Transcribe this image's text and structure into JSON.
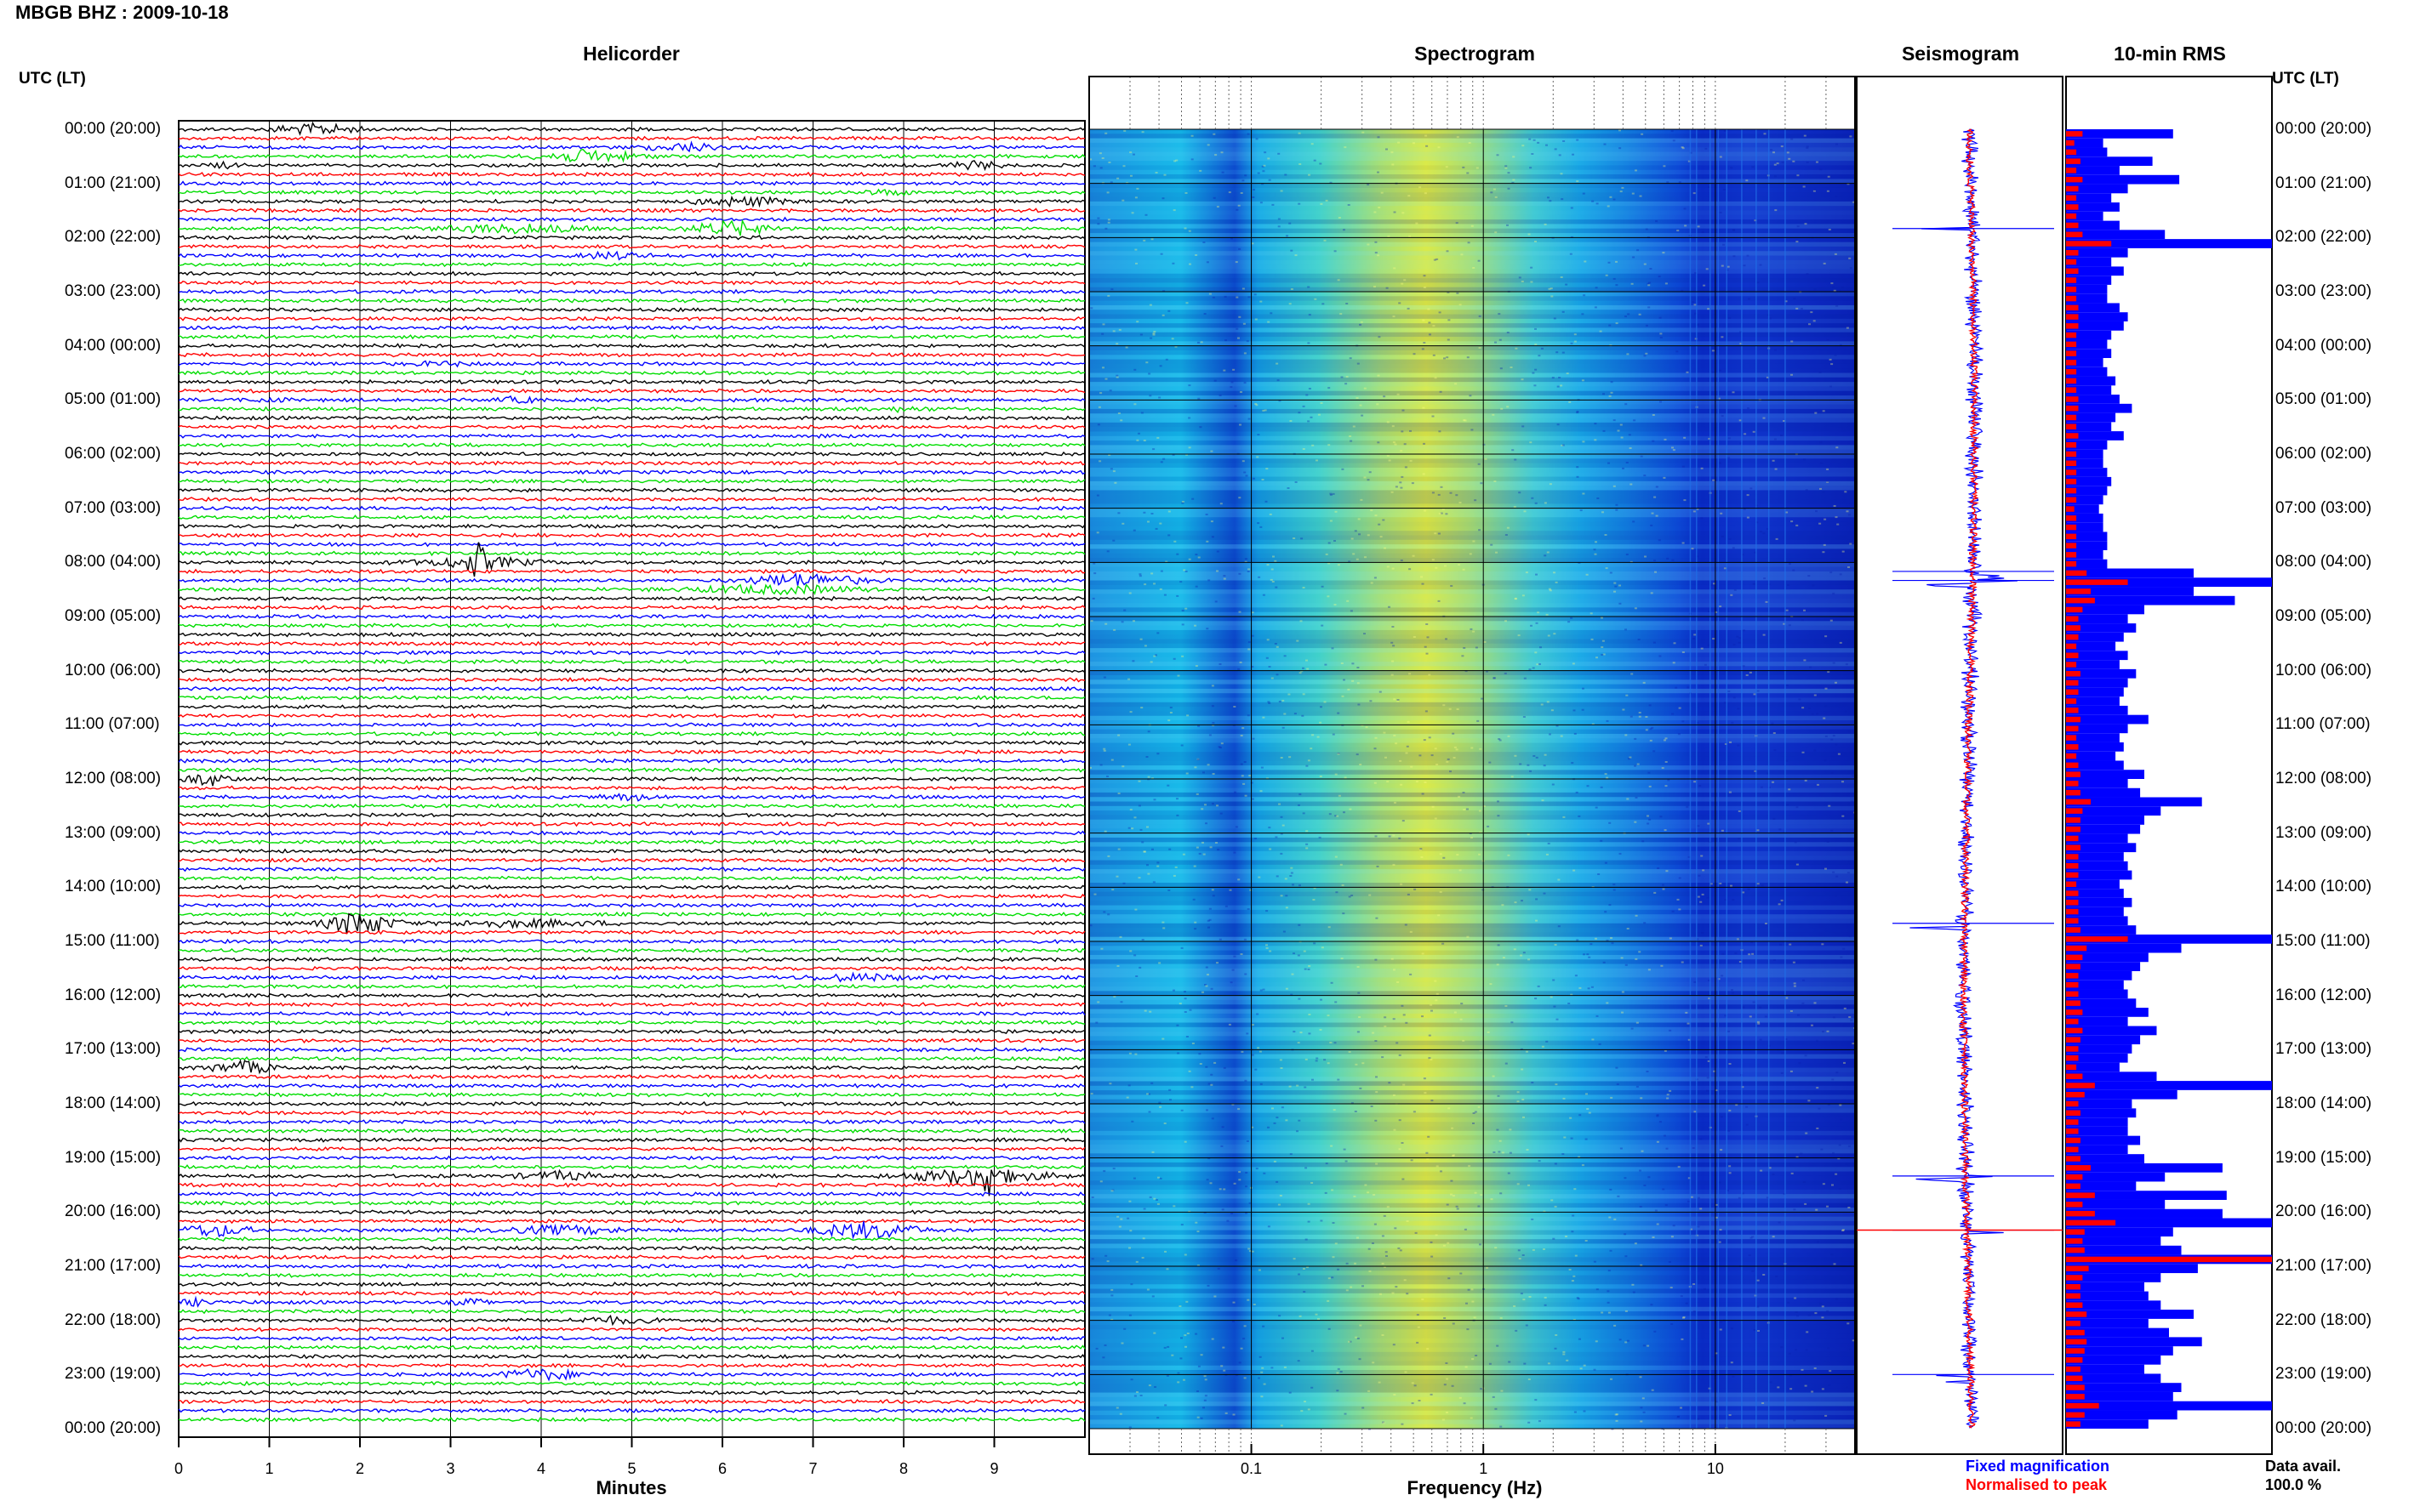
{
  "title": "MBGB BHZ : 2009-10-18",
  "utc_label_left": "UTC (LT)",
  "utc_label_right": "UTC (LT)",
  "legend": {
    "fixed": "Fixed magnification",
    "normalised": "Normalised to peak"
  },
  "data_avail": {
    "label": "Data avail.",
    "value": "100.0 %"
  },
  "colors": {
    "trace_cycle": [
      "#000000",
      "#ff0000",
      "#0000ff",
      "#00dd00"
    ],
    "fixed": "#0000ff",
    "normalised": "#ff0000"
  },
  "chart_data": [
    {
      "type": "line",
      "title": "Helicorder",
      "xlabel": "Minutes",
      "xlim": [
        0,
        10
      ],
      "x_ticks": [
        "0",
        "1",
        "2",
        "3",
        "4",
        "5",
        "6",
        "7",
        "8",
        "9"
      ],
      "hour_labels": [
        "00:00 (20:00)",
        "01:00 (21:00)",
        "02:00 (22:00)",
        "03:00 (23:00)",
        "04:00 (00:00)",
        "05:00 (01:00)",
        "06:00 (02:00)",
        "07:00 (03:00)",
        "08:00 (04:00)",
        "09:00 (05:00)",
        "10:00 (06:00)",
        "11:00 (07:00)",
        "12:00 (08:00)",
        "13:00 (09:00)",
        "14:00 (10:00)",
        "15:00 (11:00)",
        "16:00 (12:00)",
        "17:00 (13:00)",
        "18:00 (14:00)",
        "19:00 (15:00)",
        "20:00 (16:00)",
        "21:00 (17:00)",
        "22:00 (18:00)",
        "23:00 (19:00)",
        "00:00 (20:00)"
      ],
      "lines_per_hour": 6,
      "events": [
        {
          "line": 0,
          "minute": 1.0,
          "duration": 1.0,
          "amp": 2.5
        },
        {
          "line": 2,
          "minute": 5.1,
          "duration": 1.0,
          "amp": 1.8
        },
        {
          "line": 3,
          "minute": 3.9,
          "duration": 1.2,
          "amp": 3.0
        },
        {
          "line": 4,
          "minute": 0.3,
          "duration": 0.4,
          "amp": 1.5
        },
        {
          "line": 4,
          "minute": 8.5,
          "duration": 0.6,
          "amp": 1.8
        },
        {
          "line": 7,
          "minute": 7.5,
          "duration": 0.6,
          "amp": 1.2
        },
        {
          "line": 8,
          "minute": 5.6,
          "duration": 1.2,
          "amp": 2.0
        },
        {
          "line": 11,
          "minute": 2.8,
          "duration": 1.8,
          "amp": 2.0
        },
        {
          "line": 11,
          "minute": 5.6,
          "duration": 1.0,
          "amp": 3.5
        },
        {
          "line": 14,
          "minute": 4.4,
          "duration": 0.8,
          "amp": 1.5
        },
        {
          "line": 26,
          "minute": 2.6,
          "duration": 0.6,
          "amp": 1.0
        },
        {
          "line": 30,
          "minute": 0.8,
          "duration": 0.4,
          "amp": 1.2
        },
        {
          "line": 30,
          "minute": 3.5,
          "duration": 0.5,
          "amp": 1.2
        },
        {
          "line": 31,
          "minute": 7.7,
          "duration": 0.6,
          "amp": 1.0
        },
        {
          "line": 48,
          "minute": 2.5,
          "duration": 1.5,
          "amp": 2.5
        },
        {
          "line": 48,
          "minute": 3.2,
          "duration": 0.2,
          "amp": 8.0
        },
        {
          "line": 50,
          "minute": 6.2,
          "duration": 1.4,
          "amp": 3.0
        },
        {
          "line": 51,
          "minute": 5.6,
          "duration": 2.0,
          "amp": 2.0
        },
        {
          "line": 72,
          "minute": 0.0,
          "duration": 0.6,
          "amp": 3.0
        },
        {
          "line": 74,
          "minute": 4.6,
          "duration": 0.8,
          "amp": 1.2
        },
        {
          "line": 88,
          "minute": 1.6,
          "duration": 0.8,
          "amp": 6.0
        },
        {
          "line": 88,
          "minute": 2.8,
          "duration": 2.0,
          "amp": 1.5
        },
        {
          "line": 94,
          "minute": 6.8,
          "duration": 1.4,
          "amp": 1.5
        },
        {
          "line": 104,
          "minute": 0.3,
          "duration": 0.8,
          "amp": 3.0
        },
        {
          "line": 116,
          "minute": 8.0,
          "duration": 1.6,
          "amp": 4.0
        },
        {
          "line": 116,
          "minute": 8.8,
          "duration": 0.2,
          "amp": 10.0
        },
        {
          "line": 116,
          "minute": 3.7,
          "duration": 1.0,
          "amp": 2.0
        },
        {
          "line": 122,
          "minute": 0.0,
          "duration": 0.8,
          "amp": 3.0
        },
        {
          "line": 122,
          "minute": 3.5,
          "duration": 1.5,
          "amp": 2.0
        },
        {
          "line": 122,
          "minute": 7.0,
          "duration": 1.2,
          "amp": 4.0
        },
        {
          "line": 130,
          "minute": 0.0,
          "duration": 0.4,
          "amp": 1.5
        },
        {
          "line": 130,
          "minute": 3.0,
          "duration": 0.4,
          "amp": 1.5
        },
        {
          "line": 132,
          "minute": 4.3,
          "duration": 1.0,
          "amp": 1.5
        },
        {
          "line": 138,
          "minute": 3.5,
          "duration": 1.0,
          "amp": 2.5
        }
      ]
    },
    {
      "type": "heatmap",
      "title": "Spectrogram",
      "xlabel": "Frequency (Hz)",
      "xscale": "log",
      "xlim": [
        0.02,
        40
      ],
      "x_ticks": [
        "0.1",
        "1",
        "10"
      ],
      "x_tick_values": [
        0.1,
        1,
        10
      ]
    },
    {
      "type": "line",
      "title": "Seismogram",
      "series": [
        {
          "name": "Fixed magnification",
          "color": "#0000ff"
        },
        {
          "name": "Normalised to peak",
          "color": "#ff0000"
        }
      ],
      "spikes_at_line": [
        11,
        49,
        50,
        88,
        116,
        122,
        138
      ]
    },
    {
      "type": "bar",
      "orientation": "horizontal",
      "title": "10-min RMS",
      "bars_per_hour": 6,
      "fixed_values": [
        0.52,
        0.18,
        0.2,
        0.42,
        0.26,
        0.55,
        0.3,
        0.22,
        0.26,
        0.18,
        0.26,
        0.48,
        1.0,
        0.3,
        0.22,
        0.28,
        0.22,
        0.2,
        0.2,
        0.26,
        0.3,
        0.28,
        0.22,
        0.2,
        0.22,
        0.18,
        0.2,
        0.24,
        0.22,
        0.26,
        0.32,
        0.24,
        0.22,
        0.28,
        0.2,
        0.18,
        0.18,
        0.2,
        0.22,
        0.2,
        0.18,
        0.16,
        0.18,
        0.18,
        0.2,
        0.2,
        0.18,
        0.2,
        0.62,
        1.0,
        0.62,
        0.82,
        0.38,
        0.3,
        0.34,
        0.28,
        0.24,
        0.3,
        0.26,
        0.34,
        0.3,
        0.28,
        0.26,
        0.3,
        0.4,
        0.3,
        0.26,
        0.28,
        0.24,
        0.28,
        0.38,
        0.3,
        0.36,
        0.66,
        0.46,
        0.38,
        0.36,
        0.3,
        0.34,
        0.28,
        0.3,
        0.32,
        0.26,
        0.28,
        0.32,
        0.28,
        0.3,
        0.34,
        1.0,
        0.56,
        0.4,
        0.36,
        0.32,
        0.28,
        0.3,
        0.34,
        0.4,
        0.3,
        0.44,
        0.36,
        0.32,
        0.3,
        0.26,
        0.44,
        1.0,
        0.54,
        0.32,
        0.34,
        0.3,
        0.3,
        0.36,
        0.3,
        0.38,
        0.76,
        0.48,
        0.34,
        0.78,
        0.48,
        0.76,
        1.0,
        0.52,
        0.46,
        0.56,
        1.0,
        0.64,
        0.46,
        0.38,
        0.4,
        0.46,
        0.62,
        0.4,
        0.5,
        0.66,
        0.52,
        0.46,
        0.38,
        0.46,
        0.56,
        0.52,
        1.0,
        0.54,
        0.4
      ],
      "norm_values": [
        0.08,
        0.04,
        0.05,
        0.07,
        0.05,
        0.08,
        0.06,
        0.05,
        0.06,
        0.05,
        0.06,
        0.08,
        0.22,
        0.06,
        0.05,
        0.06,
        0.05,
        0.05,
        0.05,
        0.06,
        0.06,
        0.06,
        0.05,
        0.05,
        0.05,
        0.05,
        0.05,
        0.05,
        0.05,
        0.06,
        0.06,
        0.05,
        0.05,
        0.06,
        0.05,
        0.05,
        0.05,
        0.05,
        0.05,
        0.05,
        0.05,
        0.04,
        0.05,
        0.05,
        0.05,
        0.05,
        0.05,
        0.05,
        0.1,
        0.3,
        0.12,
        0.14,
        0.08,
        0.06,
        0.07,
        0.06,
        0.05,
        0.06,
        0.05,
        0.07,
        0.06,
        0.06,
        0.05,
        0.06,
        0.07,
        0.06,
        0.05,
        0.06,
        0.05,
        0.06,
        0.07,
        0.06,
        0.07,
        0.12,
        0.08,
        0.07,
        0.07,
        0.06,
        0.07,
        0.06,
        0.06,
        0.06,
        0.05,
        0.06,
        0.06,
        0.06,
        0.06,
        0.07,
        0.3,
        0.1,
        0.08,
        0.07,
        0.06,
        0.06,
        0.06,
        0.07,
        0.08,
        0.06,
        0.08,
        0.07,
        0.06,
        0.06,
        0.05,
        0.08,
        0.14,
        0.09,
        0.06,
        0.07,
        0.06,
        0.06,
        0.07,
        0.06,
        0.07,
        0.12,
        0.08,
        0.07,
        0.14,
        0.08,
        0.14,
        0.24,
        0.09,
        0.08,
        0.09,
        1.0,
        0.11,
        0.08,
        0.07,
        0.07,
        0.08,
        0.1,
        0.07,
        0.09,
        0.1,
        0.09,
        0.08,
        0.07,
        0.08,
        0.09,
        0.09,
        0.16,
        0.09,
        0.07
      ]
    }
  ]
}
